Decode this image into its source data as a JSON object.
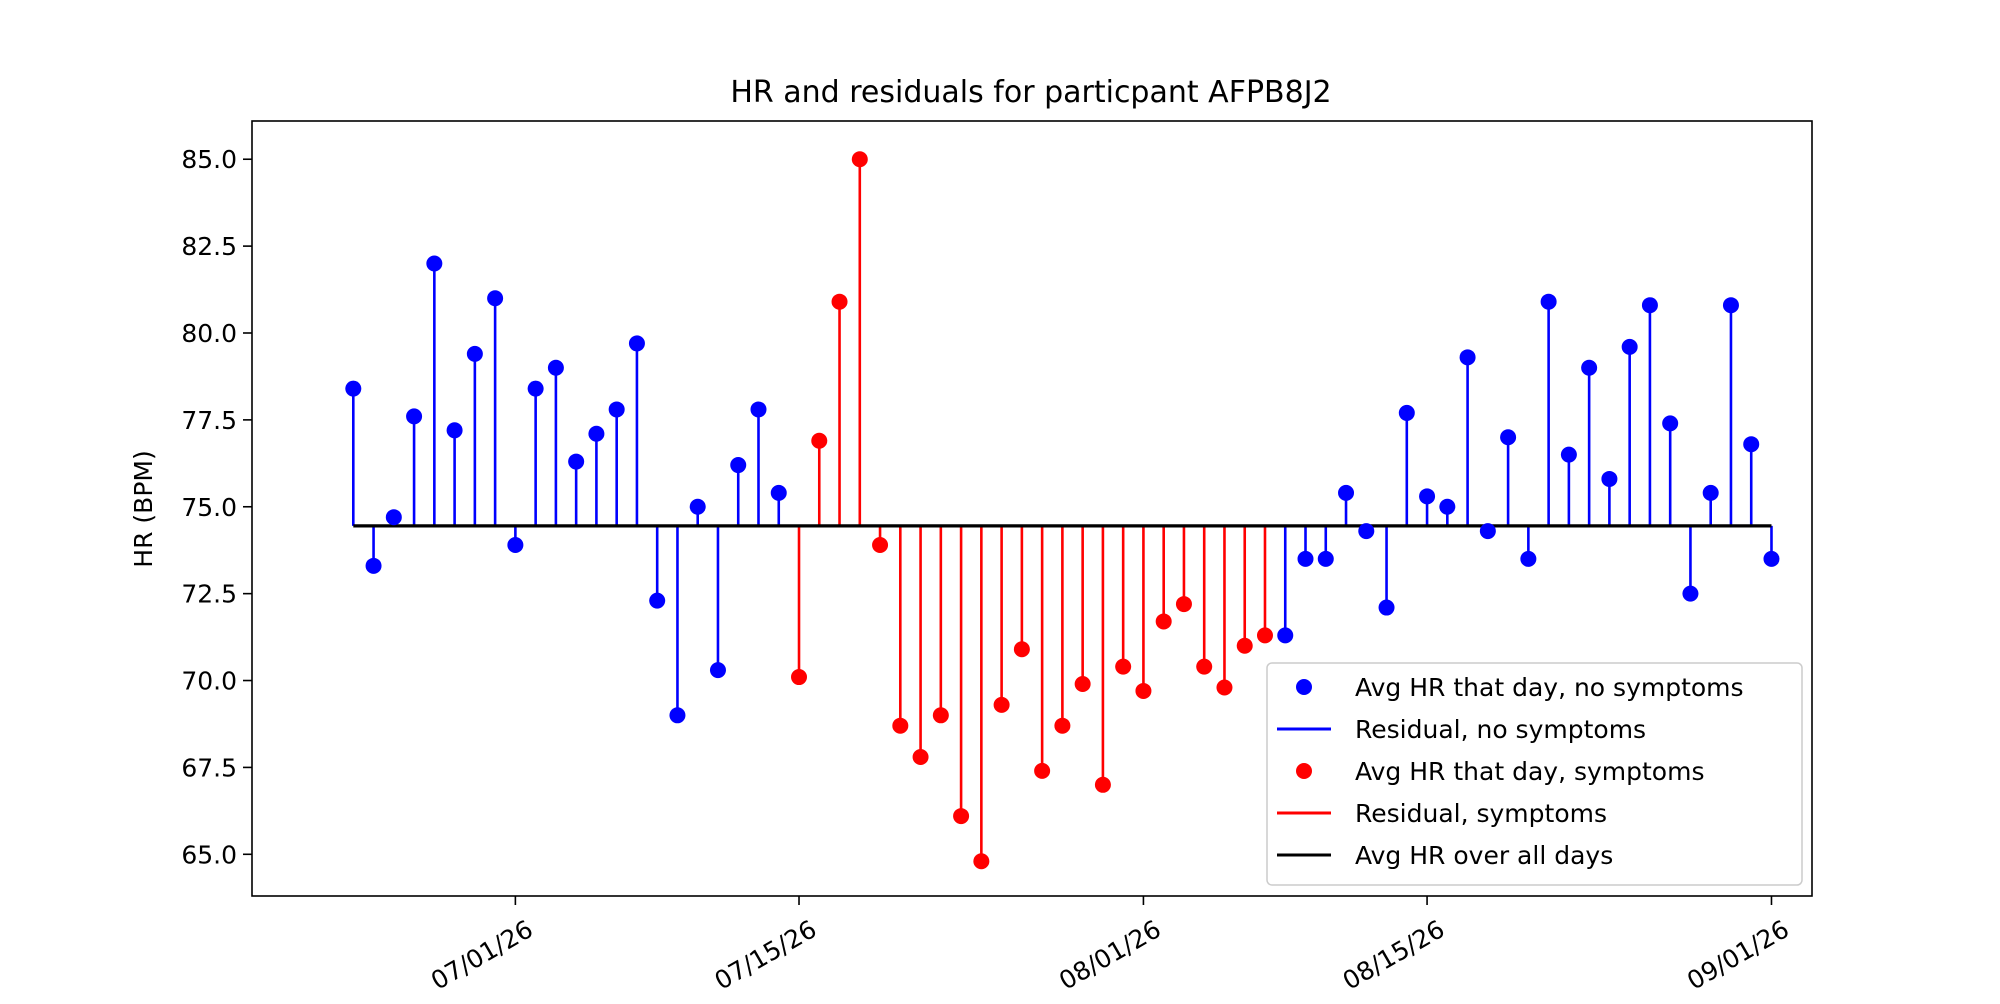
{
  "chart_data": {
    "type": "scatter",
    "title": "HR and residuals for particpant AFPB8J2",
    "xlabel": "",
    "ylabel": "HR (BPM)",
    "ylim": [
      63.8,
      86.1
    ],
    "xlim": [
      "2026-06-18",
      "2026-09-03"
    ],
    "yticks": [
      "65.0",
      "67.5",
      "70.0",
      "72.5",
      "75.0",
      "77.5",
      "80.0",
      "82.5",
      "85.0"
    ],
    "xticks": [
      {
        "date": "2026-07-01",
        "label": "07/01/26"
      },
      {
        "date": "2026-07-15",
        "label": "07/15/26"
      },
      {
        "date": "2026-08-01",
        "label": "08/01/26"
      },
      {
        "date": "2026-08-15",
        "label": "08/15/26"
      },
      {
        "date": "2026-09-01",
        "label": "09/01/26"
      }
    ],
    "baseline": 74.45,
    "start_date": "2026-06-23",
    "legend_position": "bottom-right",
    "grid": false,
    "colors": {
      "no_symptoms": "#0000ff",
      "symptoms": "#ff0000",
      "baseline": "#000000"
    },
    "legend": [
      {
        "label": "Avg HR that day, no symptoms",
        "kind": "marker",
        "color": "#0000ff"
      },
      {
        "label": "Residual, no symptoms",
        "kind": "line",
        "color": "#0000ff"
      },
      {
        "label": "Avg HR that day, symptoms",
        "kind": "marker",
        "color": "#ff0000"
      },
      {
        "label": "Residual, symptoms",
        "kind": "line",
        "color": "#ff0000"
      },
      {
        "label": "Avg HR over all days",
        "kind": "line",
        "color": "#000000"
      }
    ],
    "values": [
      78.4,
      73.3,
      74.7,
      77.6,
      82.0,
      77.2,
      79.4,
      81.0,
      73.9,
      78.4,
      79.0,
      76.3,
      77.1,
      77.8,
      79.7,
      72.3,
      69.0,
      75.0,
      70.3,
      76.2,
      77.8,
      75.4,
      70.1,
      76.9,
      80.9,
      85.0,
      73.9,
      68.7,
      67.8,
      69.0,
      66.1,
      64.8,
      69.3,
      70.9,
      67.4,
      68.7,
      69.9,
      67.0,
      70.4,
      69.7,
      71.7,
      72.2,
      70.4,
      69.8,
      71.0,
      71.3,
      71.3,
      73.5,
      73.5,
      75.4,
      74.3,
      72.1,
      77.7,
      75.3,
      75.0,
      79.3,
      74.3,
      77.0,
      73.5,
      80.9,
      76.5,
      79.0,
      75.8,
      79.6,
      80.8,
      77.4,
      72.5,
      75.4,
      80.8,
      76.8,
      73.5
    ],
    "symptoms": [
      0,
      0,
      0,
      0,
      0,
      0,
      0,
      0,
      0,
      0,
      0,
      0,
      0,
      0,
      0,
      0,
      0,
      0,
      0,
      0,
      0,
      0,
      1,
      1,
      1,
      1,
      1,
      1,
      1,
      1,
      1,
      1,
      1,
      1,
      1,
      1,
      1,
      1,
      1,
      1,
      1,
      1,
      1,
      1,
      1,
      1,
      0,
      0,
      0,
      0,
      0,
      0,
      0,
      0,
      0,
      0,
      0,
      0,
      0,
      0,
      0,
      0,
      0,
      0,
      0,
      0,
      0,
      0,
      0,
      0,
      0
    ]
  }
}
